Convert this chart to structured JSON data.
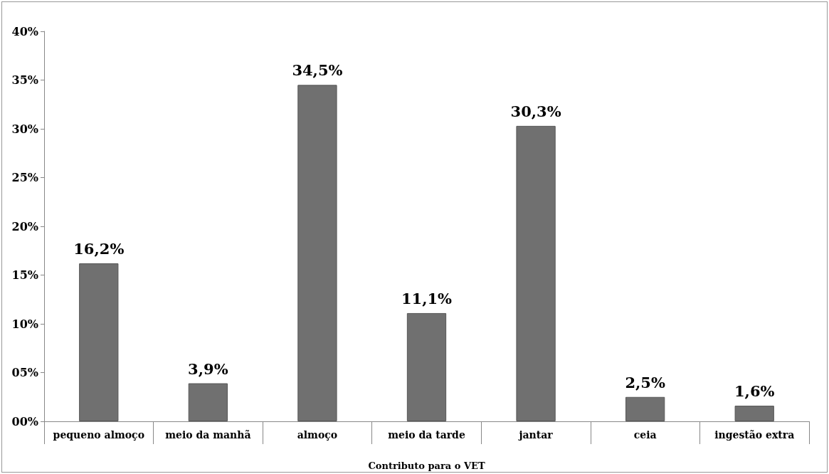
{
  "chart_data": {
    "type": "bar",
    "xlabel": "Contributo para o VET",
    "categories": [
      "pequeno almoço",
      "meio da manhã",
      "almoço",
      "meio da tarde",
      "jantar",
      "ceia",
      "ingestão extra"
    ],
    "values": [
      16.2,
      3.9,
      34.5,
      11.1,
      30.3,
      2.5,
      1.6
    ],
    "value_labels": [
      "16,2%",
      "3,9%",
      "34,5%",
      "11,1%",
      "30,3%",
      "2,5%",
      "1,6%"
    ],
    "color": "#707070",
    "ylim": [
      0,
      40
    ],
    "yticks": [
      {
        "value": 0,
        "label": "00%"
      },
      {
        "value": 5,
        "label": "05%"
      },
      {
        "value": 10,
        "label": "10%"
      },
      {
        "value": 15,
        "label": "15%"
      },
      {
        "value": 20,
        "label": "20%"
      },
      {
        "value": 25,
        "label": "25%"
      },
      {
        "value": 30,
        "label": "30%"
      },
      {
        "value": 35,
        "label": "35%"
      },
      {
        "value": 40,
        "label": "40%"
      }
    ],
    "grid": false
  }
}
